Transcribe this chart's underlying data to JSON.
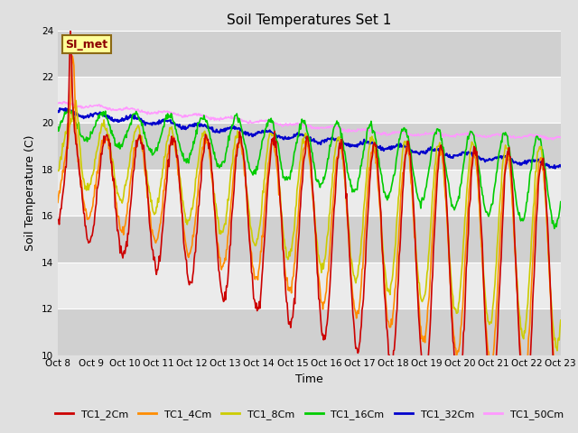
{
  "title": "Soil Temperatures Set 1",
  "xlabel": "Time",
  "ylabel": "Soil Temperature (C)",
  "ylim": [
    10,
    24
  ],
  "yticks": [
    10,
    12,
    14,
    16,
    18,
    20,
    22,
    24
  ],
  "annotation": "SI_met",
  "annotation_color": "#8B0000",
  "annotation_bg": "#FFFF99",
  "annotation_border": "#8B6914",
  "series": {
    "TC1_2Cm": {
      "color": "#CC0000",
      "lw": 1.2
    },
    "TC1_4Cm": {
      "color": "#FF8C00",
      "lw": 1.2
    },
    "TC1_8Cm": {
      "color": "#CCCC00",
      "lw": 1.2
    },
    "TC1_16Cm": {
      "color": "#00CC00",
      "lw": 1.2
    },
    "TC1_32Cm": {
      "color": "#0000CC",
      "lw": 1.5
    },
    "TC1_50Cm": {
      "color": "#FF99FF",
      "lw": 1.2
    }
  },
  "tick_labels": [
    "Oct 8",
    "Oct 9",
    "Oct 10",
    "Oct 11",
    "Oct 12",
    "Oct 13",
    "Oct 14",
    "Oct 15",
    "Oct 16",
    "Oct 17",
    "Oct 18",
    "Oct 19",
    "Oct 20",
    "Oct 21",
    "Oct 22",
    "Oct 23"
  ],
  "background_color": "#E0E0E0",
  "band_dark": "#D0D0D0",
  "band_light": "#EBEBEB"
}
